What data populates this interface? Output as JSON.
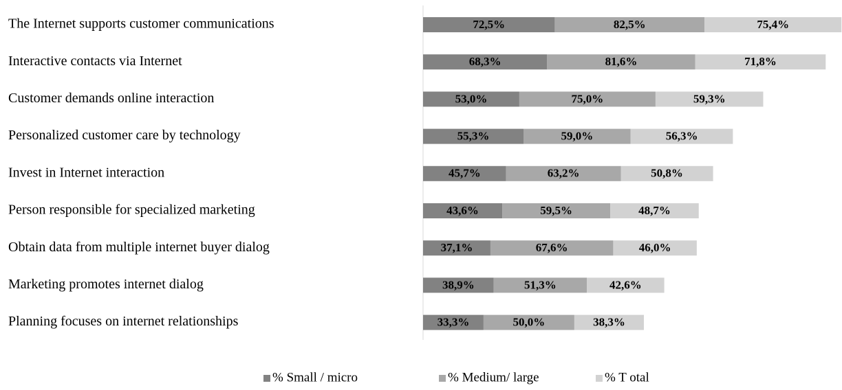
{
  "chart_data": {
    "type": "stacked-bar-horizontal",
    "categories": [
      "The Internet supports customer communications",
      "Interactive contacts via Internet",
      "Customer demands online interaction",
      "Personalized customer care by technology",
      "Invest in Internet interaction",
      "Person responsible for specialized marketing",
      "Obtain data from multiple internet buyer dialog",
      "Marketing promotes internet dialog",
      "Planning focuses on internet relationships"
    ],
    "series": [
      {
        "name": "% Small / micro",
        "color": "#828282",
        "values": [
          72.5,
          68.3,
          53.0,
          55.3,
          45.7,
          43.6,
          37.1,
          38.9,
          33.3
        ],
        "value_labels": [
          "72,5%",
          "68,3%",
          "53,0%",
          "55,3%",
          "45,7%",
          "43,6%",
          "37,1%",
          "38,9%",
          "33,3%"
        ]
      },
      {
        "name": "% Medium/ large",
        "color": "#a8a8a8",
        "values": [
          82.5,
          81.6,
          75.0,
          59.0,
          63.2,
          59.5,
          67.6,
          51.3,
          50.0
        ],
        "value_labels": [
          "82,5%",
          "81,6%",
          "75,0%",
          "59,0%",
          "63,2%",
          "59,5%",
          "67,6%",
          "51,3%",
          "50,0%"
        ]
      },
      {
        "name": "% T otal",
        "color": "#d2d2d2",
        "values": [
          75.4,
          71.8,
          59.3,
          56.3,
          50.8,
          48.7,
          46.0,
          42.6,
          38.3
        ],
        "value_labels": [
          "75,4%",
          "71,8%",
          "59,3%",
          "56,3%",
          "50,8%",
          "48,7%",
          "46,0%",
          "42,6%",
          "38,3%"
        ]
      }
    ],
    "legend": "bottom"
  }
}
